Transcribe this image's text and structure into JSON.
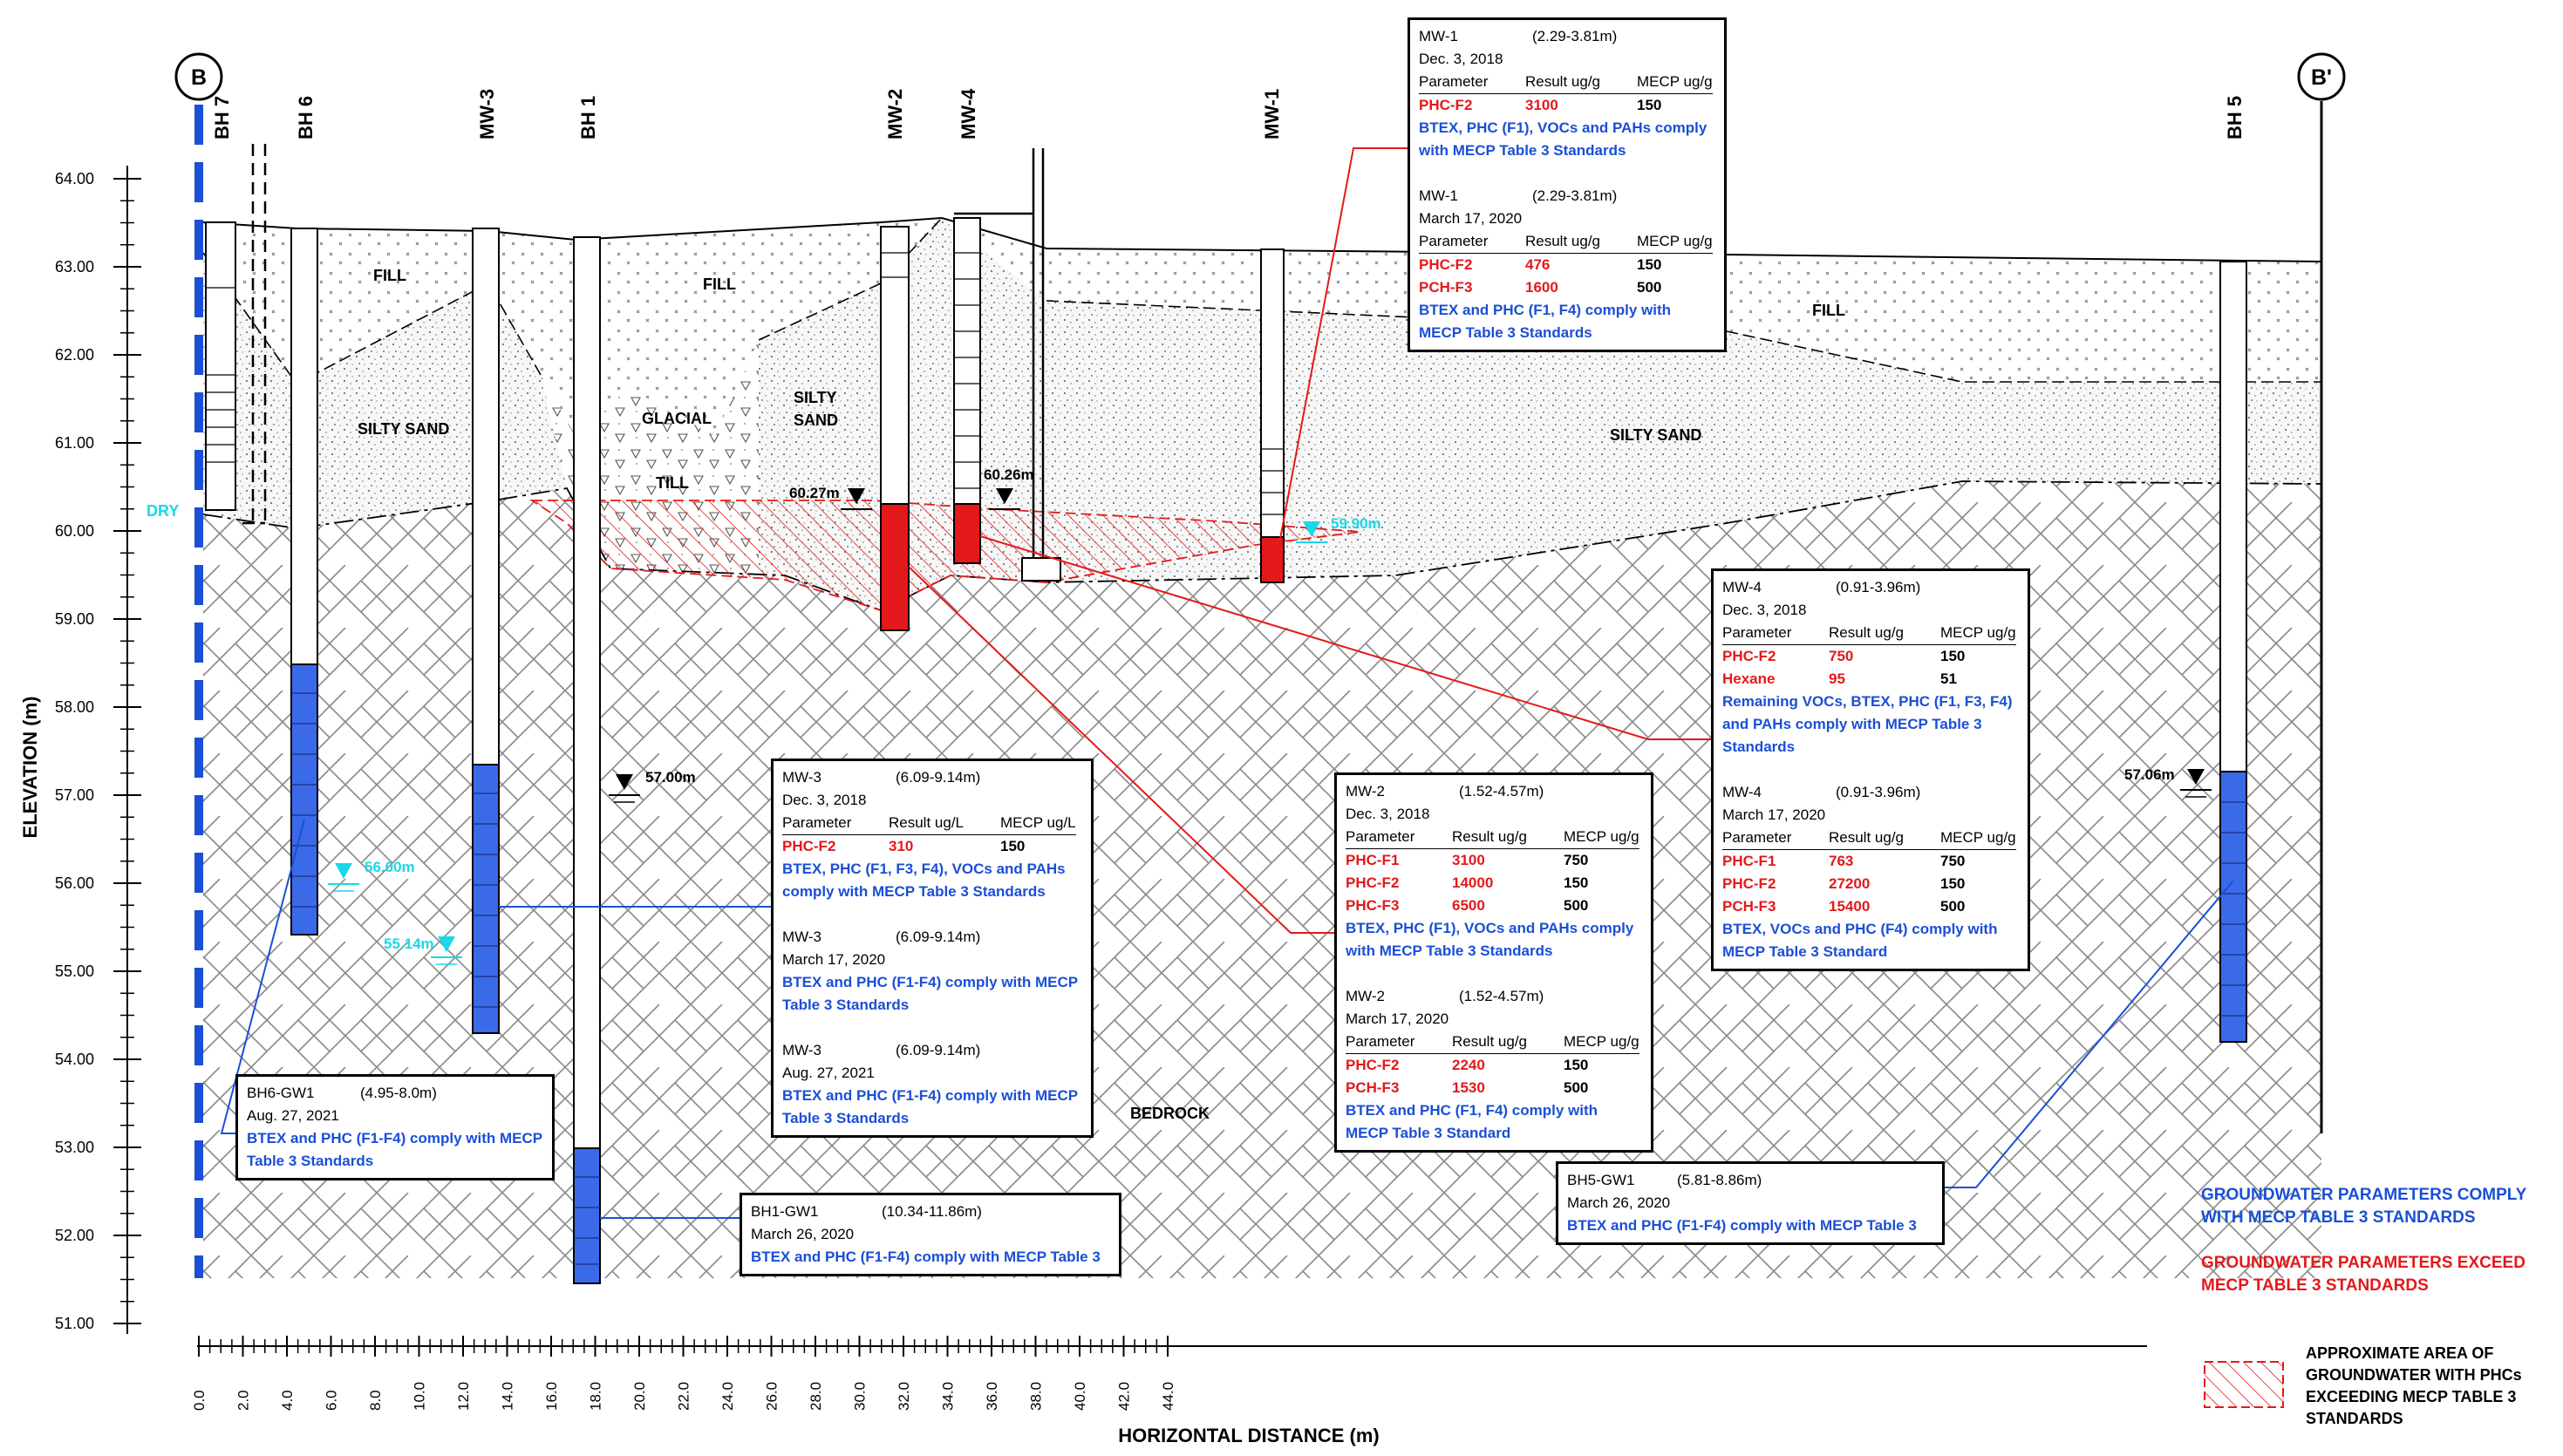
{
  "section": {
    "start_marker": "B",
    "end_marker": "B'"
  },
  "axes": {
    "y_label": "ELEVATION (m)",
    "x_label": "HORIZONTAL DISTANCE (m)",
    "y_ticks": [
      "64.00",
      "63.00",
      "62.00",
      "61.00",
      "60.00",
      "59.00",
      "58.00",
      "57.00",
      "56.00",
      "55.00",
      "54.00",
      "53.00",
      "52.00",
      "51.00"
    ],
    "x_ticks": [
      "0.0",
      "2.0",
      "4.0",
      "6.0",
      "8.0",
      "10.0",
      "12.0",
      "14.0",
      "16.0",
      "18.0",
      "20.0",
      "22.0",
      "24.0",
      "26.0",
      "28.0",
      "30.0",
      "32.0",
      "34.0",
      "36.0",
      "38.0",
      "40.0",
      "42.0",
      "44.0"
    ]
  },
  "boreholes": [
    {
      "name": "BH 7"
    },
    {
      "name": "BH 6"
    },
    {
      "name": "MW-3"
    },
    {
      "name": "BH 1"
    },
    {
      "name": "MW-2"
    },
    {
      "name": "MW-4"
    },
    {
      "name": "MW-1"
    },
    {
      "name": "BH 5"
    }
  ],
  "strata": {
    "fill": "FILL",
    "silty_sand": "SILTY SAND",
    "silty_sand_2": "SILTY",
    "silty_sand_3": "SAND",
    "glacial_1": "GLACIAL",
    "glacial_2": "TILL",
    "bedrock": "BEDROCK",
    "dry": "DRY"
  },
  "water_levels": {
    "mw2": "60.27m",
    "mw4": "60.26m",
    "mw1": "59.90m",
    "bh1": "57.00m",
    "bh6": "56.00m",
    "mw3": "55.14m",
    "bh5": "57.06m"
  },
  "callouts": {
    "mw1": {
      "s1": {
        "hdr": [
          "MW-1",
          "(2.29-3.81m)",
          "Dec. 3, 2018"
        ],
        "ph": [
          "Parameter",
          "Result ug/g",
          "MECP ug/g"
        ],
        "rows": [
          [
            "PHC-F2",
            "3100",
            "150"
          ]
        ],
        "note": "BTEX, PHC (F1), VOCs and PAHs comply with MECP Table 3 Standards"
      },
      "s2": {
        "hdr": [
          "MW-1",
          "(2.29-3.81m)",
          "March 17, 2020"
        ],
        "ph": [
          "Parameter",
          "Result ug/g",
          "MECP ug/g"
        ],
        "rows": [
          [
            "PHC-F2",
            "476",
            "150"
          ],
          [
            "PCH-F3",
            "1600",
            "500"
          ]
        ],
        "note": "BTEX and PHC (F1, F4) comply with MECP Table 3 Standards"
      }
    },
    "mw4": {
      "s1": {
        "hdr": [
          "MW-4",
          "(0.91-3.96m)",
          "Dec. 3, 2018"
        ],
        "ph": [
          "Parameter",
          "Result ug/g",
          "MECP ug/g"
        ],
        "rows": [
          [
            "PHC-F2",
            "750",
            "150"
          ],
          [
            "Hexane",
            "95",
            "51"
          ]
        ],
        "note": "Remaining VOCs, BTEX, PHC (F1, F3, F4) and PAHs comply with MECP Table 3 Standards"
      },
      "s2": {
        "hdr": [
          "MW-4",
          "(0.91-3.96m)",
          "March 17, 2020"
        ],
        "ph": [
          "Parameter",
          "Result ug/g",
          "MECP ug/g"
        ],
        "rows": [
          [
            "PHC-F1",
            "763",
            "750"
          ],
          [
            "PHC-F2",
            "27200",
            "150"
          ],
          [
            "PCH-F3",
            "15400",
            "500"
          ]
        ],
        "note": "BTEX, VOCs and PHC (F4) comply with MECP Table 3 Standard"
      }
    },
    "mw3": {
      "s1": {
        "hdr": [
          "MW-3",
          "(6.09-9.14m)",
          "Dec. 3, 2018"
        ],
        "ph": [
          "Parameter",
          "Result ug/L",
          "MECP ug/L"
        ],
        "rows": [
          [
            "PHC-F2",
            "310",
            "150"
          ]
        ],
        "note": "BTEX, PHC (F1, F3, F4), VOCs and PAHs comply with MECP Table 3 Standards"
      },
      "s2": {
        "hdr": [
          "MW-3",
          "(6.09-9.14m)",
          "March 17, 2020"
        ],
        "note": "BTEX and PHC (F1-F4) comply with MECP Table 3 Standards"
      },
      "s3": {
        "hdr": [
          "MW-3",
          "(6.09-9.14m)",
          "Aug. 27, 2021"
        ],
        "note": "BTEX and PHC (F1-F4) comply with MECP Table 3 Standards"
      }
    },
    "mw2": {
      "s1": {
        "hdr": [
          "MW-2",
          "(1.52-4.57m)",
          "Dec. 3, 2018"
        ],
        "ph": [
          "Parameter",
          "Result ug/g",
          "MECP ug/g"
        ],
        "rows": [
          [
            "PHC-F1",
            "3100",
            "750"
          ],
          [
            "PHC-F2",
            "14000",
            "150"
          ],
          [
            "PHC-F3",
            "6500",
            "500"
          ]
        ],
        "note": "BTEX, PHC (F1), VOCs and PAHs comply with MECP Table 3 Standards"
      },
      "s2": {
        "hdr": [
          "MW-2",
          "(1.52-4.57m)",
          "March 17, 2020"
        ],
        "ph": [
          "Parameter",
          "Result ug/g",
          "MECP ug/g"
        ],
        "rows": [
          [
            "PHC-F2",
            "2240",
            "150"
          ],
          [
            "PCH-F3",
            "1530",
            "500"
          ]
        ],
        "note": "BTEX and PHC (F1, F4) comply with MECP Table 3 Standard"
      }
    },
    "bh6": {
      "hdr": [
        "BH6-GW1",
        "(4.95-8.0m)",
        "Aug. 27, 2021"
      ],
      "note": "BTEX and PHC (F1-F4) comply with MECP Table 3 Standards"
    },
    "bh1": {
      "hdr": [
        "BH1-GW1",
        "(10.34-11.86m)",
        "March 26, 2020"
      ],
      "note": "BTEX and PHC (F1-F4) comply with MECP Table 3"
    },
    "bh5": {
      "hdr": [
        "BH5-GW1",
        "(5.81-8.86m)",
        "March 26, 2020"
      ],
      "note": "BTEX and PHC (F1-F4) comply with MECP Table 3"
    }
  },
  "legend": {
    "blue_1": "GROUNDWATER PARAMETERS COMPLY",
    "blue_2": "WITH MECP TABLE 3 STANDARDS",
    "red_1": "GROUNDWATER PARAMETERS EXCEED",
    "red_2": "MECP TABLE 3 STANDARDS",
    "hatch_1": "APPROXIMATE AREA OF",
    "hatch_2": "GROUNDWATER WITH PHCs",
    "hatch_3": "EXCEEDING MECP TABLE 3",
    "hatch_4": "STANDARDS"
  },
  "colors": {
    "blue": "#1a4fd6",
    "red": "#e3191b",
    "cyan": "#19d8e8",
    "black": "#000000"
  }
}
